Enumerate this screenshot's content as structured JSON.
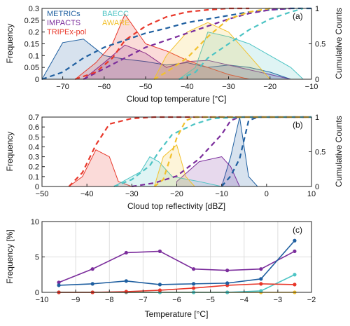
{
  "chart_data": [
    {
      "panel_label": "(a)",
      "type": "area",
      "xlabel": "Cloud top temperature [°C]",
      "ylabel": "Frequency",
      "y2label": "Cumulative Counts",
      "xlim": [
        -75,
        -10
      ],
      "ylim": [
        0,
        0.3
      ],
      "y2lim": [
        0,
        1
      ],
      "xticks": [
        -70,
        -60,
        -50,
        -40,
        -30,
        -20,
        -10
      ],
      "yticks": [
        0,
        0.05,
        0.1,
        0.15,
        0.2,
        0.25,
        0.3
      ],
      "y2ticks": [
        0,
        0.5,
        1
      ],
      "series": [
        {
          "name": "METRICs",
          "color": "#1f5fa0",
          "x": [
            -75,
            -70,
            -65,
            -60,
            -55,
            -50,
            -45,
            -40,
            -35,
            -30,
            -25,
            -20,
            -15,
            -10
          ],
          "values": [
            0,
            0.155,
            0.17,
            0.1,
            0.085,
            0.075,
            0.06,
            0.07,
            0.05,
            0.06,
            0.05,
            0.03,
            0,
            0
          ],
          "cumulative_x": [
            -75,
            -70,
            -65,
            -60,
            -55,
            -50,
            -45,
            -40,
            -35,
            -30,
            -25,
            -20,
            -15,
            -10
          ],
          "cumulative": [
            0,
            0.1,
            0.3,
            0.45,
            0.55,
            0.65,
            0.72,
            0.8,
            0.85,
            0.9,
            0.95,
            0.98,
            1,
            1
          ]
        },
        {
          "name": "IMPACTS",
          "color": "#7b2d9c",
          "x": [
            -65,
            -60,
            -55,
            -50,
            -45,
            -40,
            -35,
            -30,
            -25,
            -20,
            -15
          ],
          "values": [
            0,
            0.07,
            0.145,
            0.11,
            0.05,
            0.075,
            0.08,
            0.06,
            0.04,
            0.02,
            0
          ],
          "cumulative_x": [
            -65,
            -60,
            -55,
            -50,
            -45,
            -40,
            -35,
            -30,
            -25,
            -20,
            -15
          ],
          "cumulative": [
            0,
            0.15,
            0.3,
            0.45,
            0.55,
            0.65,
            0.75,
            0.85,
            0.93,
            0.98,
            1
          ]
        },
        {
          "name": "TRIPEx-pol",
          "color": "#e8372a",
          "x": [
            -67,
            -62,
            -58,
            -55,
            -50,
            -45,
            -40,
            -35,
            -30,
            -25
          ],
          "values": [
            0,
            0.07,
            0.15,
            0.275,
            0.15,
            0.12,
            0.08,
            0.05,
            0.02,
            0
          ],
          "cumulative_x": [
            -67,
            -62,
            -58,
            -55,
            -50,
            -45,
            -40,
            -35,
            -30,
            -25
          ],
          "cumulative": [
            0,
            0.1,
            0.3,
            0.55,
            0.75,
            0.88,
            0.95,
            0.98,
            1,
            1
          ]
        },
        {
          "name": "BAECC",
          "color": "#4dc4c4",
          "x": [
            -42,
            -38,
            -35,
            -30,
            -25,
            -20,
            -15,
            -12
          ],
          "values": [
            0,
            0.05,
            0.2,
            0.18,
            0.15,
            0.1,
            0.05,
            0
          ],
          "cumulative_x": [
            -42,
            -38,
            -35,
            -30,
            -25,
            -20,
            -15,
            -12
          ],
          "cumulative": [
            0,
            0.1,
            0.3,
            0.5,
            0.7,
            0.85,
            0.95,
            1
          ]
        },
        {
          "name": "AWARE",
          "color": "#f2c12e",
          "x": [
            -48,
            -45,
            -40,
            -35,
            -30,
            -25,
            -20
          ],
          "values": [
            0,
            0.1,
            0.2,
            0.24,
            0.2,
            0.1,
            0
          ],
          "cumulative_x": [
            -48,
            -45,
            -40,
            -35,
            -30,
            -25,
            -20
          ],
          "cumulative": [
            0,
            0.1,
            0.3,
            0.6,
            0.85,
            0.95,
            1
          ]
        }
      ]
    },
    {
      "panel_label": "(b)",
      "type": "area",
      "xlabel": "Cloud top reflectivity [dBZ]",
      "ylabel": "Frequency",
      "y2label": "Cumulative Counts",
      "xlim": [
        -50,
        10
      ],
      "ylim": [
        0,
        0.7
      ],
      "y2lim": [
        0,
        1
      ],
      "xticks": [
        -50,
        -40,
        -30,
        -20,
        -10,
        0,
        10
      ],
      "yticks": [
        0,
        0.1,
        0.2,
        0.3,
        0.4,
        0.5,
        0.6,
        0.7
      ],
      "y2ticks": [
        0,
        0.5,
        1
      ],
      "series": [
        {
          "name": "METRICs",
          "color": "#1f5fa0",
          "x": [
            -10,
            -8,
            -6,
            -4,
            -2
          ],
          "values": [
            0,
            0.3,
            0.7,
            0.1,
            0
          ],
          "cumulative_x": [
            -10,
            -8,
            -6,
            -4,
            -2,
            0,
            10
          ],
          "cumulative": [
            0,
            0.15,
            0.4,
            0.95,
            1,
            1,
            1
          ]
        },
        {
          "name": "IMPACTS",
          "color": "#7b2d9c",
          "x": [
            -20,
            -15,
            -10,
            -8,
            -6
          ],
          "values": [
            0.05,
            0.25,
            0.3,
            0.2,
            0
          ],
          "cumulative_x": [
            -30,
            -25,
            -20,
            -15,
            -10,
            -8,
            -6,
            0,
            10
          ],
          "cumulative": [
            0,
            0.05,
            0.15,
            0.4,
            0.75,
            0.95,
            1,
            1,
            1
          ]
        },
        {
          "name": "TRIPEx-pol",
          "color": "#e8372a",
          "x": [
            -44,
            -41,
            -38,
            -35,
            -33,
            -30
          ],
          "values": [
            0,
            0.1,
            0.37,
            0.3,
            0.05,
            0
          ],
          "cumulative_x": [
            -44,
            -41,
            -38,
            -35,
            -30,
            -25,
            -20,
            -10,
            0,
            10
          ],
          "cumulative": [
            0,
            0.2,
            0.6,
            0.9,
            0.98,
            1,
            1,
            1,
            1,
            1
          ]
        },
        {
          "name": "BAECC",
          "color": "#4dc4c4",
          "x": [
            -34,
            -28,
            -26,
            -24,
            -21,
            -15,
            -10
          ],
          "values": [
            0,
            0.15,
            0.3,
            0.25,
            0.1,
            0.05,
            0
          ],
          "cumulative_x": [
            -34,
            -30,
            -26,
            -24,
            -21,
            -16,
            -12,
            -5,
            0,
            10
          ],
          "cumulative": [
            0,
            0.1,
            0.3,
            0.5,
            0.75,
            0.9,
            0.98,
            1,
            1,
            1
          ]
        },
        {
          "name": "AWARE",
          "color": "#f2c12e",
          "x": [
            -25,
            -23,
            -20,
            -18,
            -16
          ],
          "values": [
            0,
            0.3,
            0.42,
            0.1,
            0
          ],
          "cumulative_x": [
            -25,
            -23,
            -20,
            -18,
            -16,
            -10,
            0,
            10
          ],
          "cumulative": [
            0,
            0.1,
            0.7,
            0.95,
            1,
            1,
            1,
            1
          ]
        }
      ]
    },
    {
      "panel_label": "(c)",
      "type": "line",
      "xlabel": "Temperature [°C]",
      "ylabel": "Frequency [%]",
      "xlim": [
        -10,
        -2
      ],
      "ylim": [
        0,
        10
      ],
      "xticks": [
        -10,
        -9,
        -8,
        -7,
        -6,
        -5,
        -4,
        -3,
        -2
      ],
      "yticks": [
        0,
        5,
        10
      ],
      "x": [
        -9.5,
        -8.5,
        -7.5,
        -6.5,
        -5.5,
        -4.5,
        -3.5,
        -2.5
      ],
      "series": [
        {
          "name": "METRICs",
          "color": "#1f5fa0",
          "values": [
            1.0,
            1.2,
            1.6,
            1.1,
            1.2,
            1.3,
            1.9,
            7.3
          ]
        },
        {
          "name": "IMPACTS",
          "color": "#7b2d9c",
          "values": [
            1.4,
            3.3,
            5.6,
            5.8,
            3.3,
            3.1,
            3.3,
            5.8
          ]
        },
        {
          "name": "TRIPEx-pol",
          "color": "#e8372a",
          "values": [
            0.0,
            0.0,
            0.1,
            0.3,
            0.6,
            1.0,
            1.2,
            1.1
          ]
        },
        {
          "name": "BAECC",
          "color": "#4dc4c4",
          "values": [
            0.0,
            0.0,
            0.0,
            0.0,
            0.0,
            0.0,
            0.2,
            2.5
          ]
        },
        {
          "name": "AWARE",
          "color": "#f2c12e",
          "values": [
            0.0,
            0.0,
            0.0,
            0.0,
            0.0,
            0.0,
            0.0,
            0.0
          ]
        }
      ]
    }
  ]
}
